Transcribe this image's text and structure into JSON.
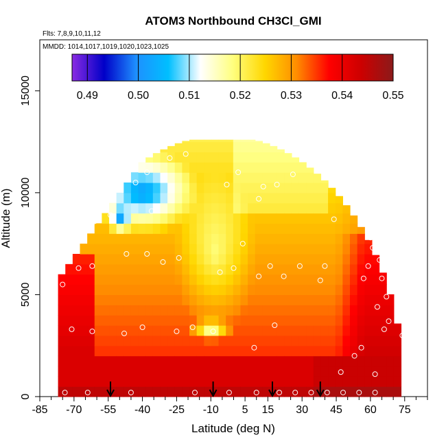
{
  "chart_data": {
    "type": "heatmap",
    "title": "ATOM3 Northbound CH3Cl_GMI",
    "flights_label": "Flts: 7,8,9,10,11,12",
    "mmdd_label": "MMDD: 1014,1017,1019,1020,1023,1025",
    "xlabel": "Latitude (deg N)",
    "ylabel": "Altitude (m)",
    "xlim": [
      -85,
      85
    ],
    "ylim": [
      0,
      17500
    ],
    "x_ticks": [
      -85,
      -70,
      -55,
      -40,
      -25,
      -10,
      5,
      15,
      30,
      45,
      60,
      75
    ],
    "x_minor_ticks": [
      -80,
      -75,
      -65,
      -60,
      -50,
      -45,
      -35,
      -30,
      -20,
      -15,
      -5,
      0,
      10,
      20,
      25,
      35,
      40,
      50,
      55,
      65,
      70,
      80,
      85
    ],
    "x_tick_labels": [
      "-85",
      "-70",
      "-55",
      "-40",
      "-25",
      "-10",
      "5",
      "15",
      "30",
      "45",
      "60",
      "75"
    ],
    "y_ticks": [
      0,
      5000,
      10000,
      15000
    ],
    "y_tick_labels": [
      "0",
      "5000",
      "10000",
      "15000"
    ],
    "colorbar": {
      "min": 0.487,
      "max": 0.55,
      "ticks": [
        0.49,
        0.5,
        0.51,
        0.52,
        0.53,
        0.54,
        0.55
      ],
      "tick_labels": [
        "0.49",
        "0.50",
        "0.51",
        "0.52",
        "0.53",
        "0.54",
        "0.55"
      ],
      "colors": [
        "#8a2be2",
        "#0000c8",
        "#1e90ff",
        "#00bfff",
        "#ffffff",
        "#ffff80",
        "#ffd700",
        "#ff8c00",
        "#ff0000",
        "#cd0000",
        "#8b1a1a"
      ]
    },
    "profile_markers_lat": [
      -54,
      -9,
      17,
      38
    ],
    "sample_points": [
      [
        -74,
        200
      ],
      [
        -71,
        3300
      ],
      [
        -68,
        6300
      ],
      [
        -70,
        7500
      ],
      [
        -64,
        200
      ],
      [
        -62,
        3200
      ],
      [
        -62,
        6400
      ],
      [
        -61,
        8600
      ],
      [
        -60,
        10600
      ],
      [
        -54,
        8900
      ],
      [
        -48,
        3100
      ],
      [
        -47,
        7000
      ],
      [
        -45,
        200
      ],
      [
        -43,
        10500
      ],
      [
        -40,
        3400
      ],
      [
        -38,
        7000
      ],
      [
        -38,
        11000
      ],
      [
        -36,
        9100
      ],
      [
        -31,
        6600
      ],
      [
        -28,
        11700
      ],
      [
        -25,
        3200
      ],
      [
        -24,
        6800
      ],
      [
        -21,
        11900
      ],
      [
        -18,
        3400
      ],
      [
        -9,
        3200
      ],
      [
        -6,
        6100
      ],
      [
        -3,
        10400
      ],
      [
        0,
        6300
      ],
      [
        2,
        11000
      ],
      [
        4,
        7500
      ],
      [
        9,
        2400
      ],
      [
        11,
        5900
      ],
      [
        11,
        9700
      ],
      [
        13,
        10300
      ],
      [
        16,
        6400
      ],
      [
        18,
        3500
      ],
      [
        19,
        10400
      ],
      [
        22,
        5900
      ],
      [
        26,
        10900
      ],
      [
        29,
        6400
      ],
      [
        34,
        200
      ],
      [
        38,
        5700
      ],
      [
        40,
        6400
      ],
      [
        41,
        200
      ],
      [
        44,
        8700
      ],
      [
        47,
        1200
      ],
      [
        48,
        200
      ],
      [
        53,
        2000
      ],
      [
        56,
        2400
      ],
      [
        57,
        5800
      ],
      [
        59,
        6400
      ],
      [
        60,
        7800
      ],
      [
        61,
        7300
      ],
      [
        62,
        1100
      ],
      [
        63,
        4400
      ],
      [
        64,
        6700
      ],
      [
        65,
        5800
      ],
      [
        66,
        3300
      ],
      [
        67,
        4900
      ],
      [
        68,
        3700
      ],
      [
        71,
        6700
      ],
      [
        74,
        3000
      ],
      [
        -75,
        5500
      ],
      [
        -72,
        7900
      ],
      [
        27,
        200
      ],
      [
        55,
        200
      ],
      [
        62,
        200
      ],
      [
        -17,
        200
      ],
      [
        -2,
        200
      ],
      [
        10,
        200
      ],
      [
        20,
        200
      ]
    ]
  }
}
